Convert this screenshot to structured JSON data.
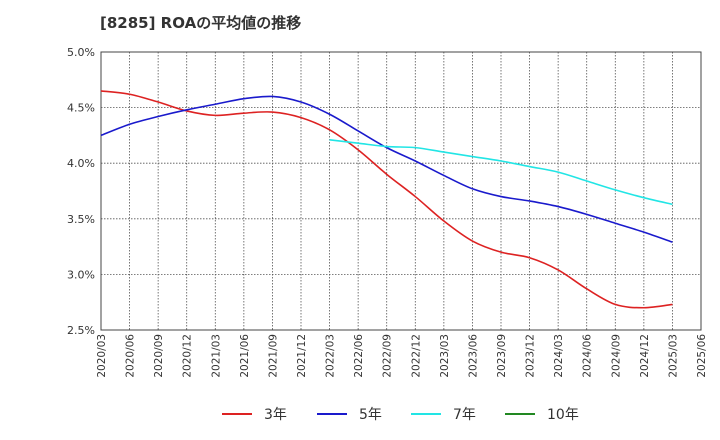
{
  "title": "[8285]  ROAの平均値の推移",
  "chart_data": {
    "type": "line",
    "title": "[8285]  ROAの平均値の推移",
    "xlabel": "",
    "ylabel": "",
    "ylim": [
      2.5,
      5.0
    ],
    "y_ticks": [
      "2.5%",
      "3.0%",
      "3.5%",
      "4.0%",
      "4.5%",
      "5.0%"
    ],
    "y_tick_values": [
      2.5,
      3.0,
      3.5,
      4.0,
      4.5,
      5.0
    ],
    "x_ticks": [
      "2020/03",
      "2020/06",
      "2020/09",
      "2020/12",
      "2021/03",
      "2021/06",
      "2021/09",
      "2021/12",
      "2022/03",
      "2022/06",
      "2022/09",
      "2022/12",
      "2023/03",
      "2023/06",
      "2023/09",
      "2023/12",
      "2024/03",
      "2024/06",
      "2024/09",
      "2024/12",
      "2025/03",
      "2025/06"
    ],
    "grid": true,
    "legend_position": "bottom",
    "series": [
      {
        "name": "3年",
        "color": "#dd2222",
        "values": [
          4.65,
          4.62,
          4.55,
          4.47,
          4.43,
          4.45,
          4.46,
          4.41,
          4.3,
          4.12,
          3.9,
          3.7,
          3.48,
          3.3,
          3.2,
          3.15,
          3.04,
          2.87,
          2.73,
          2.7,
          2.73,
          null
        ]
      },
      {
        "name": "5年",
        "color": "#1a1acc",
        "values": [
          4.25,
          4.35,
          4.42,
          4.48,
          4.53,
          4.58,
          4.6,
          4.55,
          4.44,
          4.29,
          4.14,
          4.02,
          3.89,
          3.77,
          3.7,
          3.66,
          3.61,
          3.54,
          3.46,
          3.38,
          3.29,
          null
        ]
      },
      {
        "name": "7年",
        "color": "#22e5e5",
        "values": [
          null,
          null,
          null,
          null,
          null,
          null,
          null,
          null,
          4.21,
          4.18,
          4.15,
          4.14,
          4.1,
          4.06,
          4.02,
          3.97,
          3.92,
          3.84,
          3.76,
          3.69,
          3.63,
          null
        ]
      },
      {
        "name": "10年",
        "color": "#228822",
        "values": [
          null,
          null,
          null,
          null,
          null,
          null,
          null,
          null,
          null,
          null,
          null,
          null,
          null,
          null,
          null,
          null,
          null,
          null,
          null,
          null,
          null,
          null
        ]
      }
    ]
  }
}
